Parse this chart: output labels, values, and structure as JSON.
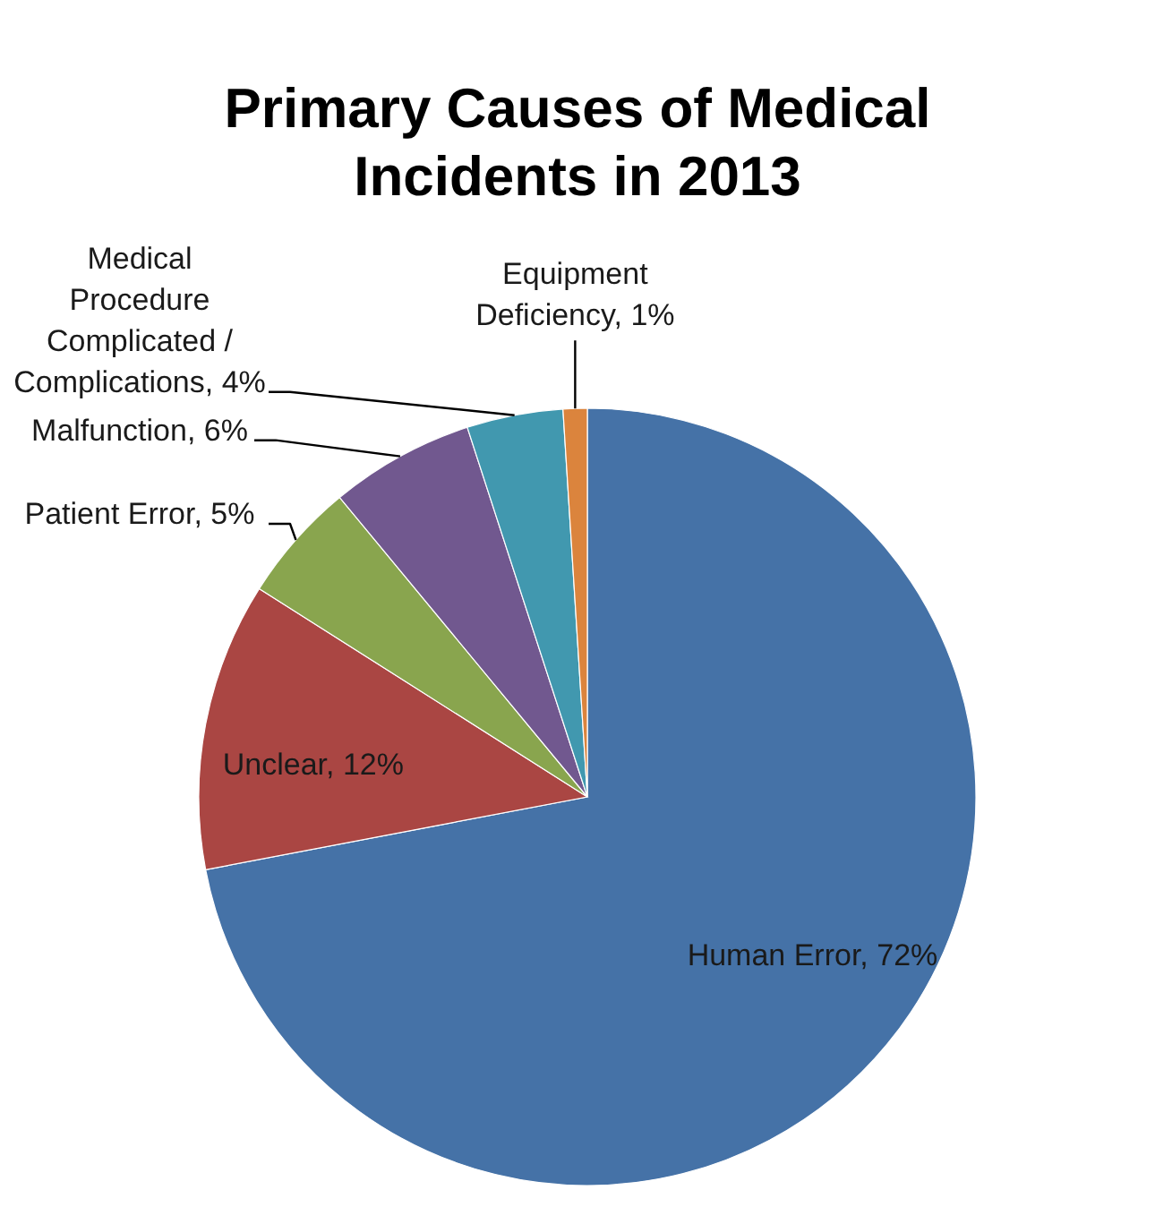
{
  "chart_data": {
    "type": "pie",
    "title": "Primary Causes of Medical Incidents in 2013",
    "categories": [
      "Human Error",
      "Unclear",
      "Patient Error",
      "Malfunction",
      "Medical Procedure Complicated / Complications",
      "Equipment Deficiency"
    ],
    "values": [
      72,
      12,
      5,
      6,
      4,
      1
    ],
    "colors": [
      "#4572a7",
      "#aa4643",
      "#89a54e",
      "#71588f",
      "#4198af",
      "#db843d"
    ],
    "value_labels": [
      "72%",
      "12%",
      "5%",
      "6%",
      "4%",
      "1%"
    ]
  }
}
